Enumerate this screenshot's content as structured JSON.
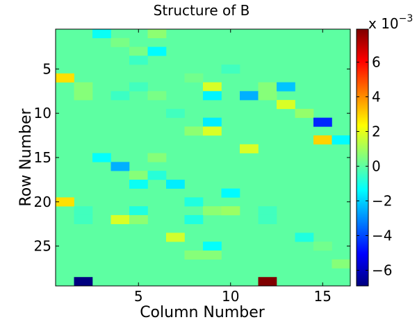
{
  "chart_data": {
    "type": "heatmap",
    "title": "Structure of B",
    "xlabel": "Column Number",
    "ylabel": "Row Number",
    "rows": 29,
    "cols": 16,
    "background_value": 0,
    "colormap": "jet",
    "clim": [
      -0.0069,
      0.0079
    ],
    "xticks": [
      5,
      10,
      15
    ],
    "yticks": [
      5,
      10,
      15,
      20,
      25
    ],
    "colorbar": {
      "exponent_label": "x 10",
      "exponent": "−3",
      "ticks": [
        -6,
        -4,
        -2,
        0,
        2,
        4,
        6
      ],
      "tick_labels": [
        "−6",
        "−4",
        "−2",
        "0",
        "2",
        "4",
        "6"
      ],
      "scale": 0.001
    },
    "cells": [
      {
        "row": 1,
        "col": 3,
        "value": -0.0012
      },
      {
        "row": 1,
        "col": 6,
        "value": 0.0007
      },
      {
        "row": 2,
        "col": 4,
        "value": 0.0004
      },
      {
        "row": 3,
        "col": 5,
        "value": 0.0004
      },
      {
        "row": 3,
        "col": 6,
        "value": -0.0014
      },
      {
        "row": 4,
        "col": 5,
        "value": -0.0005
      },
      {
        "row": 5,
        "col": 10,
        "value": -0.0004
      },
      {
        "row": 6,
        "col": 1,
        "value": 0.0028
      },
      {
        "row": 6,
        "col": 8,
        "value": 0.0003
      },
      {
        "row": 7,
        "col": 2,
        "value": 0.0006
      },
      {
        "row": 7,
        "col": 5,
        "value": -0.0004
      },
      {
        "row": 7,
        "col": 9,
        "value": 0.0018
      },
      {
        "row": 7,
        "col": 12,
        "value": 0.0006
      },
      {
        "row": 7,
        "col": 13,
        "value": -0.0022
      },
      {
        "row": 8,
        "col": 2,
        "value": 0.0006
      },
      {
        "row": 8,
        "col": 4,
        "value": -0.0005
      },
      {
        "row": 8,
        "col": 6,
        "value": 0.0004
      },
      {
        "row": 8,
        "col": 9,
        "value": -0.0015
      },
      {
        "row": 8,
        "col": 11,
        "value": -0.0025
      },
      {
        "row": 8,
        "col": 12,
        "value": 0.0006
      },
      {
        "row": 9,
        "col": 13,
        "value": 0.0018
      },
      {
        "row": 10,
        "col": 7,
        "value": -0.0004
      },
      {
        "row": 10,
        "col": 14,
        "value": 0.0008
      },
      {
        "row": 11,
        "col": 9,
        "value": -0.0016
      },
      {
        "row": 11,
        "col": 15,
        "value": -0.0045
      },
      {
        "row": 12,
        "col": 8,
        "value": 0.0007
      },
      {
        "row": 12,
        "col": 9,
        "value": 0.0018
      },
      {
        "row": 13,
        "col": 15,
        "value": 0.003
      },
      {
        "row": 13,
        "col": 16,
        "value": -0.0014
      },
      {
        "row": 14,
        "col": 11,
        "value": 0.0018
      },
      {
        "row": 15,
        "col": 3,
        "value": -0.0013
      },
      {
        "row": 15,
        "col": 6,
        "value": 0.0006
      },
      {
        "row": 16,
        "col": 4,
        "value": -0.0025
      },
      {
        "row": 17,
        "col": 5,
        "value": 0.0006
      },
      {
        "row": 17,
        "col": 6,
        "value": -0.0008
      },
      {
        "row": 18,
        "col": 5,
        "value": -0.0012
      },
      {
        "row": 18,
        "col": 7,
        "value": -0.0016
      },
      {
        "row": 19,
        "col": 10,
        "value": -0.0014
      },
      {
        "row": 20,
        "col": 1,
        "value": 0.0028
      },
      {
        "row": 20,
        "col": 8,
        "value": -0.0009
      },
      {
        "row": 21,
        "col": 2,
        "value": -0.0004
      },
      {
        "row": 21,
        "col": 5,
        "value": -0.0009
      },
      {
        "row": 21,
        "col": 9,
        "value": 0.0007
      },
      {
        "row": 21,
        "col": 10,
        "value": 0.0009
      },
      {
        "row": 21,
        "col": 12,
        "value": -0.0004
      },
      {
        "row": 22,
        "col": 2,
        "value": -0.0004
      },
      {
        "row": 22,
        "col": 4,
        "value": 0.0018
      },
      {
        "row": 22,
        "col": 5,
        "value": 0.0007
      },
      {
        "row": 22,
        "col": 8,
        "value": -0.0009
      },
      {
        "row": 22,
        "col": 12,
        "value": -0.0004
      },
      {
        "row": 24,
        "col": 7,
        "value": 0.0017
      },
      {
        "row": 24,
        "col": 14,
        "value": -0.0009
      },
      {
        "row": 25,
        "col": 9,
        "value": -0.0013
      },
      {
        "row": 25,
        "col": 15,
        "value": 0.0003
      },
      {
        "row": 26,
        "col": 8,
        "value": 0.0006
      },
      {
        "row": 26,
        "col": 9,
        "value": 0.0006
      },
      {
        "row": 27,
        "col": 16,
        "value": 0.0006
      },
      {
        "row": 29,
        "col": 2,
        "value": -0.0069
      },
      {
        "row": 29,
        "col": 12,
        "value": 0.0079
      }
    ]
  }
}
